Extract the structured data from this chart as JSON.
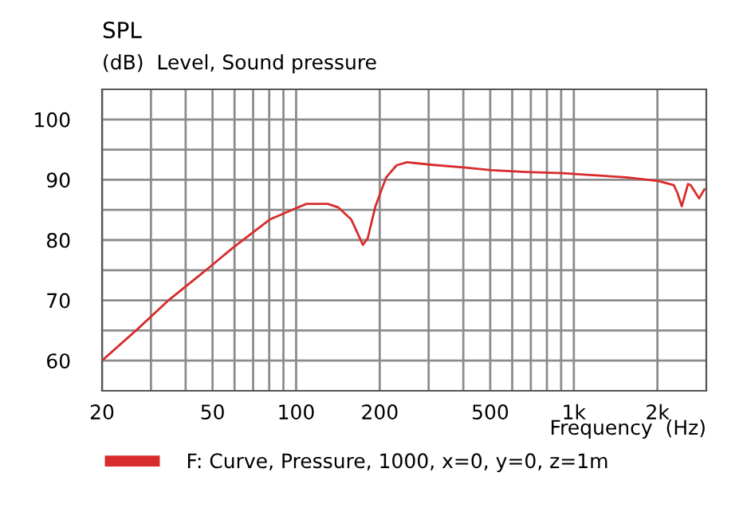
{
  "chart_data": {
    "type": "line",
    "title": "SPL",
    "subtitle": "(dB)  Level, Sound pressure",
    "xlabel": "Frequency  (Hz)",
    "log": "x",
    "xlim": [
      20,
      3000
    ],
    "ylim": [
      55,
      105
    ],
    "xticks": [
      20,
      {
        "value": 30,
        "label": null
      },
      {
        "value": 40,
        "label": null
      },
      50,
      {
        "value": 60,
        "label": null
      },
      {
        "value": 70,
        "label": null
      },
      {
        "value": 80,
        "label": null
      },
      {
        "value": 90,
        "label": null
      },
      100,
      200,
      {
        "value": 300,
        "label": null
      },
      {
        "value": 400,
        "label": null
      },
      500,
      {
        "value": 600,
        "label": null
      },
      {
        "value": 700,
        "label": null
      },
      {
        "value": 800,
        "label": null
      },
      {
        "value": 900,
        "label": null
      },
      {
        "value": 1000,
        "label": "1k"
      },
      {
        "value": 2000,
        "label": "2k"
      }
    ],
    "yticks": [
      60,
      {
        "value": 65,
        "label": null
      },
      70,
      {
        "value": 75,
        "label": null
      },
      80,
      {
        "value": 85,
        "label": null
      },
      90,
      {
        "value": 95,
        "label": null
      },
      100
    ],
    "grid": true,
    "legend": "bottom",
    "marker": "none",
    "line_style": "solid",
    "series": [
      {
        "name": "F: Curve, Pressure, 1000, x=0, y=0, z=1m",
        "color": "#d82c2c",
        "x": [
          20,
          26.8,
          34.9,
          48.5,
          59.1,
          67.4,
          80.3,
          100,
          109,
          130,
          142,
          158,
          174,
          181,
          193,
          211,
          230,
          250,
          305,
          414,
          504,
          671,
          912,
          1136,
          1544,
          2009,
          2291,
          2362,
          2447,
          2578,
          2636,
          2825,
          2951
        ],
        "values": [
          60,
          65.2,
          70.1,
          75.4,
          78.7,
          80.7,
          83.4,
          85.3,
          86.0,
          86.0,
          85.4,
          83.4,
          79.2,
          80.3,
          85.6,
          90.4,
          92.4,
          92.9,
          92.5,
          92.0,
          91.6,
          91.3,
          91.1,
          90.8,
          90.4,
          89.8,
          89.1,
          87.8,
          85.6,
          89.3,
          89.1,
          86.9,
          88.4
        ]
      }
    ]
  }
}
